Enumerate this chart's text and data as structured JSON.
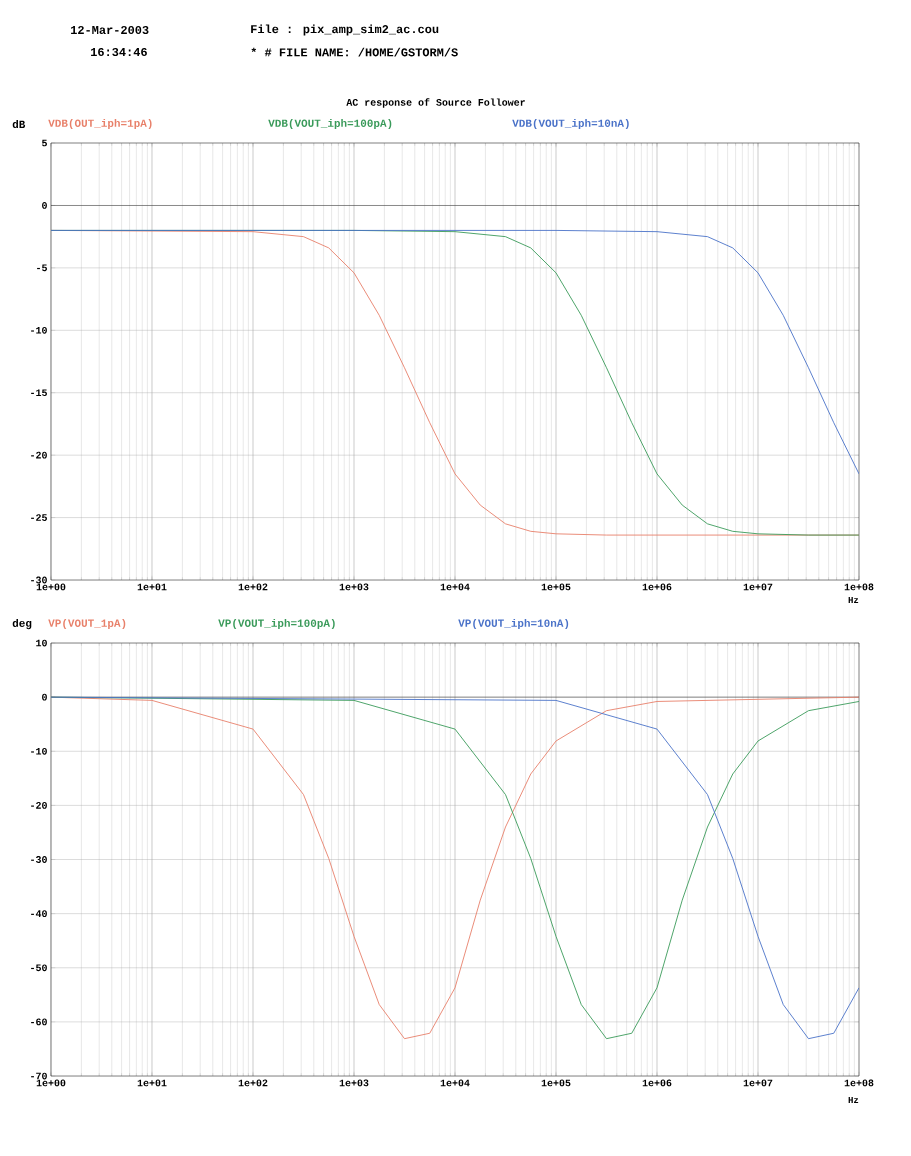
{
  "chart_data": [
    {
      "type": "line",
      "title": "AC response of Source Follower",
      "annotations": [
        "12-Mar-2003",
        "File : pix_amp_sim2_ac.cou",
        "16:34:46",
        "* # FILE NAME: /HOME/GSTORM/S"
      ],
      "ylabel": "dB",
      "xlabel": "Hz",
      "log": "x",
      "grid": true,
      "legend": "top",
      "marker": "none",
      "line_style": "solid",
      "xlim": [
        1,
        100000000
      ],
      "ylim": [
        -30,
        5
      ],
      "xticks": [
        {
          "value": 1,
          "label": "1e+00"
        },
        {
          "value": 10,
          "label": "1e+01"
        },
        {
          "value": 100,
          "label": "1e+02"
        },
        {
          "value": 1000,
          "label": "1e+03"
        },
        {
          "value": 10000,
          "label": "1e+04"
        },
        {
          "value": 100000,
          "label": "1e+05"
        },
        {
          "value": 1000000,
          "label": "1e+06"
        },
        {
          "value": 10000000,
          "label": "1e+07"
        },
        {
          "value": 100000000,
          "label": "1e+08"
        }
      ],
      "yticks": [
        5,
        0,
        -5,
        -10,
        -15,
        -20,
        -25,
        -30
      ],
      "ref_lines": [
        {
          "axis": "y",
          "value": 0
        }
      ],
      "series": [
        {
          "name": "VDB(OUT_iph=1pA)",
          "color": "#e8806a",
          "x": [
            1,
            10,
            100,
            316.2,
            562.3,
            1000,
            1778,
            3162,
            5623,
            10000,
            17783,
            31623,
            56234,
            100000,
            316228,
            1000000,
            100000000
          ],
          "values": [
            -2.0,
            null,
            -2.1,
            -2.5,
            -3.4,
            -5.4,
            -8.8,
            -13.0,
            -17.4,
            -21.5,
            -24.0,
            -25.5,
            -26.1,
            -26.3,
            -26.4,
            -26.4,
            -26.4
          ]
        },
        {
          "name": "VDB(VOUT_iph=100pA)",
          "color": "#3a9a5a",
          "x": [
            1,
            1000,
            10000,
            31623,
            56234,
            100000,
            177828,
            316228,
            562341,
            1000000,
            1778279,
            3162278,
            5623413,
            10000000,
            31622777,
            100000000
          ],
          "values": [
            -2.0,
            -2.0,
            -2.1,
            -2.5,
            -3.4,
            -5.4,
            -8.8,
            -13.0,
            -17.4,
            -21.5,
            -24.0,
            -25.5,
            -26.1,
            -26.3,
            -26.4,
            -26.4
          ]
        },
        {
          "name": "VDB(VOUT_iph=10nA)",
          "color": "#4a72c8",
          "x": [
            1,
            100000,
            1000000,
            3162278,
            5623413,
            10000000,
            17782794,
            31622777,
            56234133,
            100000000
          ],
          "values": [
            -2.0,
            -2.0,
            -2.1,
            -2.5,
            -3.4,
            -5.4,
            -8.8,
            -13.0,
            -17.4,
            -21.5
          ]
        }
      ]
    },
    {
      "type": "line",
      "ylabel": "deg",
      "xlabel": "Hz",
      "log": "x",
      "grid": true,
      "legend": "top",
      "marker": "none",
      "line_style": "solid",
      "xlim": [
        1,
        100000000
      ],
      "ylim": [
        -70,
        10
      ],
      "xticks": [
        {
          "value": 1,
          "label": "1e+00"
        },
        {
          "value": 10,
          "label": "1e+01"
        },
        {
          "value": 100,
          "label": "1e+02"
        },
        {
          "value": 1000,
          "label": "1e+03"
        },
        {
          "value": 10000,
          "label": "1e+04"
        },
        {
          "value": 100000,
          "label": "1e+05"
        },
        {
          "value": 1000000,
          "label": "1e+06"
        },
        {
          "value": 10000000,
          "label": "1e+07"
        },
        {
          "value": 100000000,
          "label": "1e+08"
        }
      ],
      "yticks": [
        10,
        0,
        -10,
        -20,
        -30,
        -40,
        -50,
        -60,
        -70
      ],
      "ref_lines": [
        {
          "axis": "y",
          "value": 0
        }
      ],
      "series": [
        {
          "name": "VP(VOUT_1pA)",
          "color": "#e8806a",
          "x": [
            1,
            10,
            100,
            316.2,
            562.3,
            1000,
            1778,
            3162,
            5623,
            10000,
            17783,
            31623,
            56234,
            100000,
            316228,
            1000000,
            100000000
          ],
          "values": [
            0,
            -0.6,
            -5.9,
            -18,
            -29.8,
            -44.2,
            -56.8,
            -63.1,
            -62.1,
            -53.7,
            -37.5,
            -24.0,
            -14.2,
            -8.1,
            -2.5,
            -0.8,
            0
          ]
        },
        {
          "name": "VP(VOUT_iph=100pA)",
          "color": "#3a9a5a",
          "x": [
            1,
            1000,
            10000,
            31623,
            56234,
            100000,
            177828,
            316228,
            562341,
            1000000,
            1778279,
            3162278,
            5623413,
            10000000,
            31622777,
            100000000
          ],
          "values": [
            0,
            -0.6,
            -5.9,
            -18,
            -29.8,
            -44.2,
            -56.8,
            -63.1,
            -62.1,
            -53.7,
            -37.5,
            -24.0,
            -14.2,
            -8.1,
            -2.5,
            -0.8
          ]
        },
        {
          "name": "VP(VOUT_iph=10nA)",
          "color": "#4a72c8",
          "x": [
            1,
            100000,
            1000000,
            3162278,
            5623413,
            10000000,
            17782794,
            31622777,
            56234133,
            100000000
          ],
          "values": [
            0,
            -0.6,
            -5.9,
            -18,
            -29.8,
            -44.2,
            -56.8,
            -63.1,
            -62.1,
            -53.7
          ]
        }
      ]
    }
  ]
}
